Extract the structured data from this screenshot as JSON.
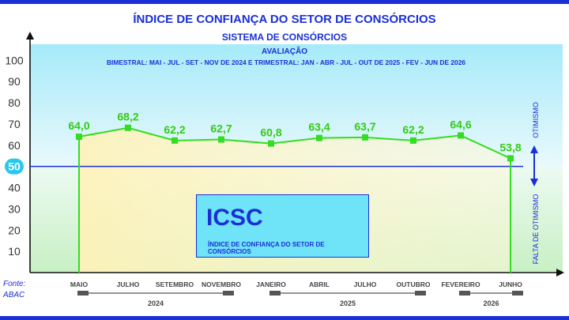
{
  "header": {
    "title": "ÍNDICE DE CONFIANÇA DO SETOR DE CONSÓRCIOS",
    "subtitle": "SISTEMA DE CONSÓRCIOS",
    "evaluation_label": "AVALIAÇÃO",
    "period_note": "BIMESTRAL: MAI - JUL - SET - NOV DE 2024 E TRIMESTRAL: JAN - ABR - JUL - OUT DE 2025 - FEV - JUN DE 2026"
  },
  "legend_box": {
    "title": "ICSC",
    "description": "ÍNDICE DE CONFIANÇA DO SETOR DE CONSÓRCIOS"
  },
  "source": {
    "label": "Fonte:",
    "name": "ABAC"
  },
  "zones": {
    "upper": "OTIMISMO",
    "lower": "FALTA DE OTIMISMO"
  },
  "colors": {
    "accent": "#1a2fd6",
    "series": "#33dd22",
    "label": "#33cc11",
    "threshold_badge": "#29c7f0"
  },
  "chart_data": {
    "type": "line",
    "categories": [
      "MAIO",
      "JULHO",
      "SETEMBRO",
      "NOVEMBRO",
      "JANEIRO",
      "ABRIL",
      "JULHO",
      "OUTUBRO",
      "FEVEREIRO",
      "JUNHO"
    ],
    "values": [
      64.0,
      68.2,
      62.2,
      62.7,
      60.8,
      63.4,
      63.7,
      62.2,
      64.6,
      53.8
    ],
    "data_labels": [
      "64,0",
      "68,2",
      "62,2",
      "62,7",
      "60,8",
      "63,4",
      "63,7",
      "62,2",
      "64,6",
      "53,8"
    ],
    "year_groups": [
      {
        "label": "2024",
        "start": 0,
        "end": 3
      },
      {
        "label": "2025",
        "start": 4,
        "end": 7
      },
      {
        "label": "2026",
        "start": 8,
        "end": 9
      }
    ],
    "ylim": [
      0,
      100
    ],
    "yticks": [
      10,
      20,
      30,
      40,
      50,
      60,
      70,
      80,
      90,
      100
    ],
    "threshold": 50,
    "title": "ÍNDICE DE CONFIANÇA DO SETOR DE CONSÓRCIOS",
    "xlabel": "",
    "ylabel": "",
    "grid": false
  }
}
